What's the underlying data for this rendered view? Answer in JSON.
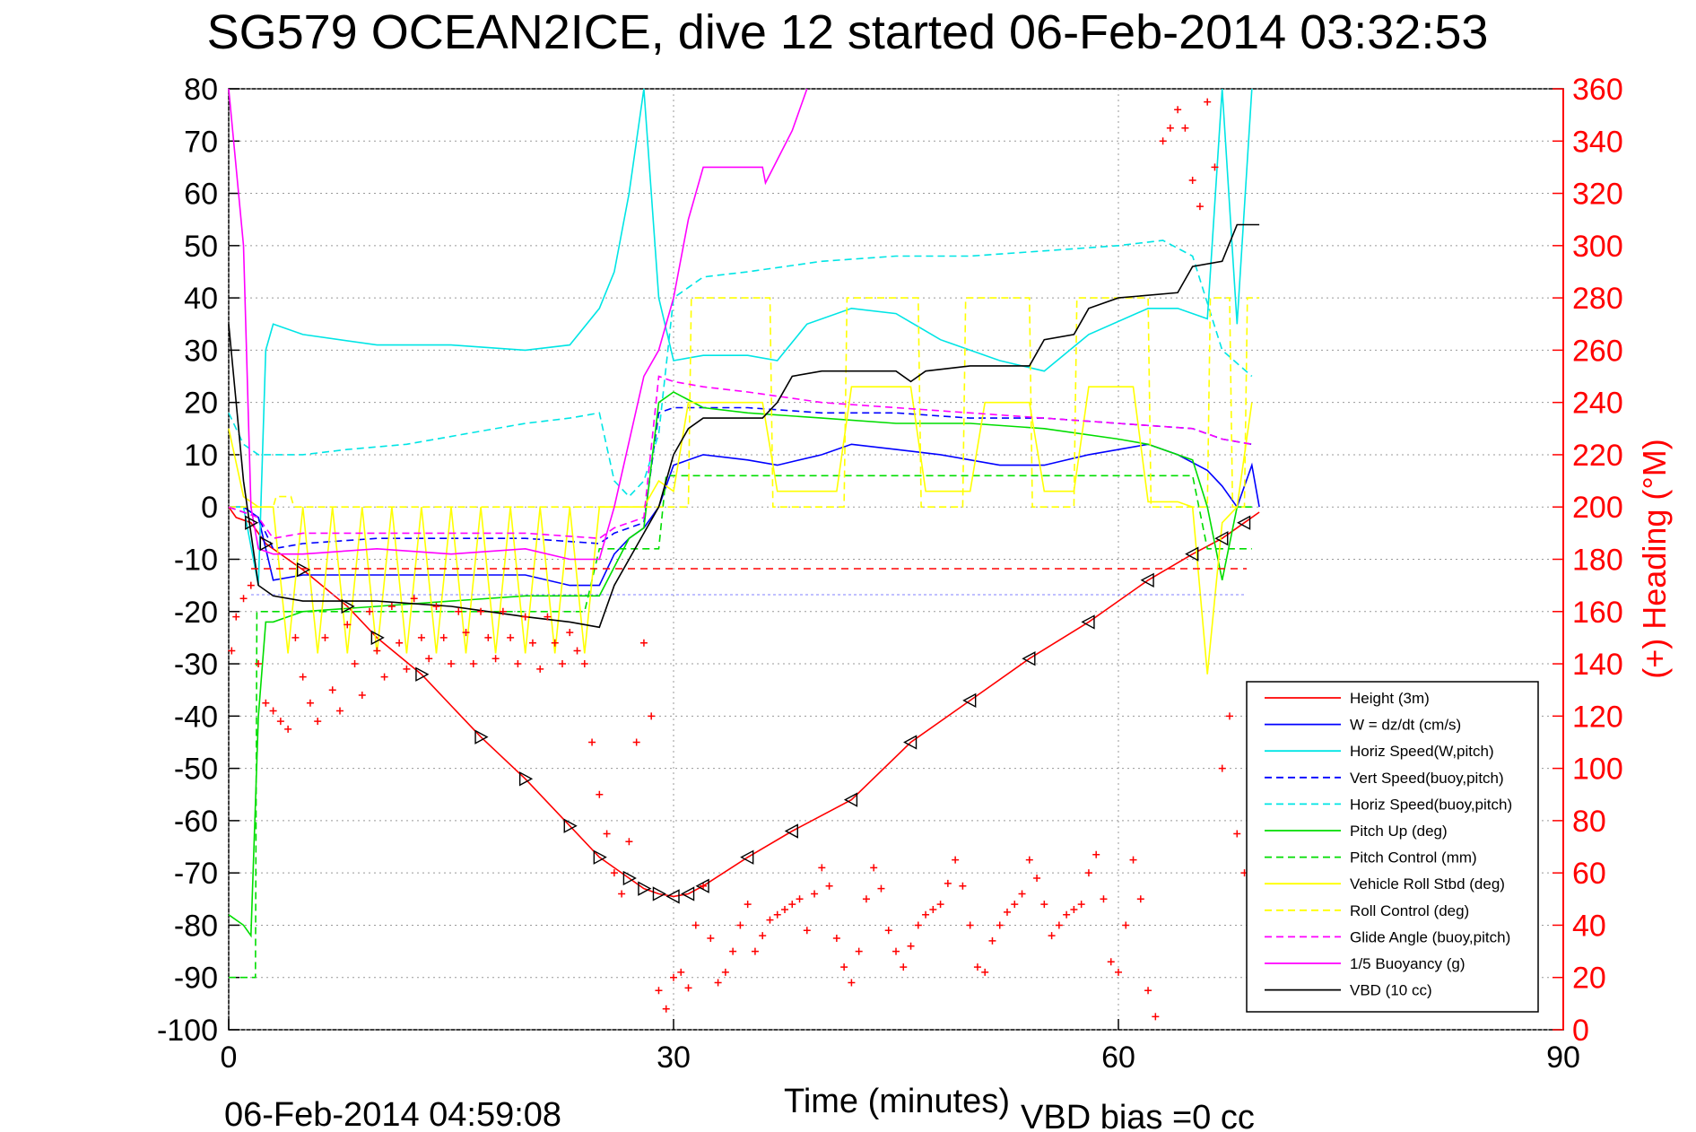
{
  "title": "SG579 OCEAN2ICE, dive 12 started 06-Feb-2014 03:32:53",
  "footer_left": "06-Feb-2014 04:59:08",
  "footer_right": "VBD bias =0 cc",
  "chart_data": {
    "type": "line",
    "xlabel": "Time (minutes)",
    "ylabel": "",
    "ylabel_right": "(+) Heading (°M)",
    "xlim": [
      0,
      90
    ],
    "ylim": [
      -100,
      80
    ],
    "ylim_right": [
      0,
      360
    ],
    "xticks": [
      0,
      30,
      60,
      90
    ],
    "yticks": [
      80,
      70,
      60,
      50,
      40,
      30,
      20,
      10,
      0,
      -10,
      -20,
      -30,
      -40,
      -50,
      -60,
      -70,
      -80,
      -90,
      -100
    ],
    "yticks_right": [
      360,
      340,
      320,
      300,
      280,
      260,
      240,
      220,
      200,
      180,
      160,
      140,
      120,
      100,
      80,
      60,
      40,
      20,
      0
    ],
    "grid": true,
    "legend_position": "bottom-right",
    "legend": [
      {
        "label": "Height (3m)",
        "color": "#ff0000",
        "dash": "solid"
      },
      {
        "label": "W  = dz/dt (cm/s)",
        "color": "#0000ff",
        "dash": "solid"
      },
      {
        "label": "Horiz Speed(W,pitch)",
        "color": "#00e5e5",
        "dash": "solid"
      },
      {
        "label": "Vert Speed(buoy,pitch)",
        "color": "#0000ff",
        "dash": "dashed"
      },
      {
        "label": "Horiz Speed(buoy,pitch)",
        "color": "#00e5e5",
        "dash": "dashed"
      },
      {
        "label": "Pitch Up (deg)",
        "color": "#00dd00",
        "dash": "solid"
      },
      {
        "label": "Pitch Control (mm)",
        "color": "#00dd00",
        "dash": "dashed"
      },
      {
        "label": "Vehicle Roll Stbd (deg)",
        "color": "#ffff00",
        "dash": "solid"
      },
      {
        "label": "Roll Control (deg)",
        "color": "#ffff00",
        "dash": "dashed"
      },
      {
        "label": "Glide Angle (buoy,pitch)",
        "color": "#ff00ff",
        "dash": "dashed"
      },
      {
        "label": "1/5 Buoyancy (g)",
        "color": "#ff00ff",
        "dash": "solid"
      },
      {
        "label": "VBD (10 cc)",
        "color": "#000000",
        "dash": "solid"
      }
    ],
    "series": [
      {
        "name": "Height (3m)",
        "color": "#ff0000",
        "axis": "left",
        "style": "solid",
        "x": [
          0.0,
          0.5,
          1.5,
          2.5,
          5,
          8,
          10,
          13,
          17,
          20,
          23,
          25,
          27,
          28,
          29,
          30,
          31,
          32,
          35,
          38,
          42,
          46,
          50,
          54,
          58,
          62,
          65,
          67,
          68.5,
          69.5
        ],
        "y": [
          0,
          -2,
          -3,
          -7,
          -12,
          -19,
          -25,
          -32,
          -44,
          -52,
          -61,
          -67,
          -71,
          -73,
          -74,
          -74.5,
          -74,
          -72.5,
          -67,
          -62,
          -56,
          -45,
          -37,
          -29,
          -22,
          -14,
          -9,
          -6,
          -3,
          -1
        ]
      },
      {
        "name": "W  = dz/dt (cm/s)",
        "color": "#0000ff",
        "axis": "left",
        "style": "solid",
        "x": [
          0,
          1,
          2,
          3,
          5,
          8,
          12,
          16,
          20,
          23,
          25,
          26,
          27,
          28,
          29,
          30,
          32,
          35,
          37,
          40,
          42,
          45,
          48,
          52,
          55,
          58,
          62,
          64,
          66,
          67,
          68,
          69,
          69.5
        ],
        "y": [
          0,
          0,
          -2,
          -14,
          -13,
          -13,
          -13,
          -13,
          -13,
          -15,
          -15,
          -9,
          -6,
          -4,
          0,
          8,
          10,
          9,
          8,
          10,
          12,
          11,
          10,
          8,
          8,
          10,
          12,
          10,
          7,
          4,
          0,
          8,
          0
        ]
      },
      {
        "name": "Horiz Speed(W,pitch)",
        "color": "#00e5e5",
        "axis": "left",
        "style": "solid",
        "x": [
          0,
          1,
          2,
          2.5,
          3,
          5,
          10,
          15,
          20,
          23,
          25,
          26,
          27,
          28,
          29,
          30,
          32,
          35,
          37,
          39,
          42,
          45,
          48,
          52,
          55,
          58,
          62,
          64,
          66,
          67,
          68,
          69
        ],
        "y": [
          0,
          0,
          -15,
          30,
          35,
          33,
          31,
          31,
          30,
          31,
          38,
          45,
          60,
          80,
          40,
          28,
          29,
          29,
          28,
          35,
          38,
          37,
          32,
          28,
          26,
          33,
          38,
          38,
          36,
          80,
          35,
          80
        ]
      },
      {
        "name": "Vert Speed(buoy,pitch)",
        "color": "#0000ff",
        "axis": "left",
        "style": "dashed",
        "x": [
          0,
          2,
          3,
          5,
          10,
          15,
          20,
          25,
          26,
          28,
          29,
          30,
          32,
          35,
          40,
          45,
          50,
          55,
          60,
          65,
          67,
          69
        ],
        "y": [
          0,
          -2,
          -8,
          -7,
          -6,
          -6,
          -6,
          -7,
          -5,
          -3,
          18,
          19,
          19,
          19,
          18,
          18,
          17,
          17,
          16,
          15,
          13,
          12
        ]
      },
      {
        "name": "Horiz Speed(buoy,pitch)",
        "color": "#00e5e5",
        "axis": "left",
        "style": "dashed",
        "x": [
          0,
          1,
          2,
          3,
          5,
          8,
          12,
          16,
          20,
          23,
          25,
          26,
          27,
          28,
          29,
          30,
          32,
          35,
          40,
          45,
          50,
          55,
          60,
          63,
          65,
          67,
          69
        ],
        "y": [
          18,
          12,
          10,
          10,
          10,
          11,
          12,
          14,
          16,
          17,
          18,
          5,
          2,
          5,
          14,
          40,
          44,
          45,
          47,
          48,
          48,
          49,
          50,
          51,
          48,
          30,
          25
        ]
      },
      {
        "name": "Pitch Up (deg)",
        "color": "#00dd00",
        "axis": "left",
        "style": "solid",
        "x": [
          0,
          1,
          1.5,
          2,
          2.5,
          3,
          5,
          10,
          15,
          20,
          25,
          27,
          28,
          29,
          30,
          32,
          35,
          40,
          45,
          50,
          55,
          60,
          62,
          65,
          66,
          67,
          68,
          69
        ],
        "y": [
          -78,
          -80,
          -82,
          -40,
          -22,
          -22,
          -20,
          -19,
          -18,
          -17,
          -17,
          -6,
          -4,
          20,
          22,
          19,
          18,
          17,
          16,
          16,
          15,
          13,
          12,
          9,
          0,
          -14,
          0,
          0
        ]
      },
      {
        "name": "Pitch Control (mm)",
        "color": "#00dd00",
        "axis": "left",
        "style": "dashed",
        "x": [
          0,
          1.8,
          1.9,
          2.5,
          5,
          10,
          15,
          20,
          24,
          25,
          29,
          29.5,
          35,
          40,
          50,
          60,
          65,
          66,
          67,
          69
        ],
        "y": [
          -90,
          -90,
          -20,
          -20,
          -20,
          -20,
          -20,
          -20,
          -20,
          -8,
          -8,
          6,
          6,
          6,
          6,
          6,
          6,
          -8,
          -8,
          -8
        ]
      },
      {
        "name": "Vehicle Roll Stbd (deg)",
        "color": "#ffff00",
        "axis": "left",
        "style": "solid",
        "x": [
          0,
          1,
          2,
          3,
          4,
          5,
          6,
          7,
          8,
          9,
          10,
          11,
          12,
          13,
          14,
          15,
          16,
          17,
          18,
          19,
          20,
          21,
          22,
          23,
          24,
          25,
          28,
          29,
          30,
          31,
          32,
          36,
          37,
          41,
          42,
          46,
          47,
          50,
          51,
          54,
          55,
          57,
          58,
          61,
          62,
          64,
          65,
          66,
          67,
          68,
          69
        ],
        "y": [
          15,
          2,
          0,
          0,
          -28,
          0,
          -28,
          0,
          -28,
          0,
          -28,
          0,
          -28,
          0,
          -28,
          0,
          -28,
          0,
          -28,
          0,
          -28,
          0,
          -28,
          0,
          -28,
          0,
          0,
          5,
          3,
          20,
          20,
          20,
          3,
          3,
          23,
          23,
          3,
          3,
          20,
          20,
          3,
          3,
          23,
          23,
          1,
          1,
          0,
          -32,
          -3,
          0,
          20
        ]
      },
      {
        "name": "Roll Control (deg)",
        "color": "#ffff00",
        "axis": "left",
        "style": "dashed",
        "x": [
          0,
          1,
          3,
          3.2,
          4.2,
          4.4,
          30,
          31,
          31.2,
          36.5,
          36.7,
          41.5,
          41.7,
          46.5,
          46.7,
          49.5,
          49.7,
          54,
          54.2,
          57,
          57.2,
          62,
          62.2,
          66,
          66.2,
          67.5,
          67.7,
          68.5,
          68.7,
          69.5
        ],
        "y": [
          0,
          0,
          0,
          2,
          2,
          0,
          0,
          0,
          40,
          40,
          0,
          0,
          40,
          40,
          0,
          0,
          40,
          40,
          0,
          0,
          40,
          40,
          0,
          0,
          40,
          40,
          0,
          0,
          40,
          40
        ]
      },
      {
        "name": "Glide Angle (buoy,pitch)",
        "color": "#ff00ff",
        "axis": "left",
        "style": "dashed",
        "x": [
          0,
          2,
          3,
          5,
          10,
          15,
          20,
          25,
          26,
          28,
          29,
          30,
          32,
          35,
          40,
          45,
          50,
          55,
          60,
          65,
          67,
          69
        ],
        "y": [
          0,
          -2,
          -6,
          -5,
          -5,
          -5,
          -5,
          -6,
          -4,
          -2,
          25,
          24,
          23,
          22,
          20,
          19,
          18,
          17,
          16,
          15,
          13,
          12
        ]
      },
      {
        "name": "1/5 Buoyancy (g)",
        "color": "#ff00ff",
        "axis": "left",
        "style": "solid",
        "x": [
          0,
          1,
          1.5,
          2,
          3,
          5,
          10,
          15,
          20,
          23,
          25,
          26,
          28,
          29,
          30,
          31,
          32,
          35,
          36,
          36.2,
          38,
          39
        ],
        "y": [
          80,
          50,
          0,
          -8,
          -9,
          -9,
          -8,
          -9,
          -8,
          -10,
          -10,
          0,
          25,
          30,
          40,
          55,
          65,
          65,
          65,
          62,
          72,
          80
        ]
      },
      {
        "name": "VBD (10 cc)",
        "color": "#000000",
        "axis": "left",
        "style": "solid",
        "x": [
          0,
          0.5,
          1,
          1.5,
          2,
          3,
          5,
          10,
          15,
          20,
          23,
          25,
          26,
          28,
          29,
          30,
          31,
          32,
          35,
          36,
          37,
          38,
          40,
          45,
          46,
          47,
          50,
          53,
          54,
          55,
          57,
          58,
          60,
          64,
          65,
          67,
          68,
          69.5
        ],
        "y": [
          35,
          20,
          5,
          -5,
          -15,
          -17,
          -18,
          -18,
          -19,
          -21,
          -22,
          -23,
          -15,
          -5,
          0,
          10,
          15,
          17,
          17,
          17,
          20,
          25,
          26,
          26,
          24,
          26,
          27,
          27,
          27,
          32,
          33,
          38,
          40,
          41,
          46,
          47,
          54,
          54
        ]
      }
    ],
    "heading_points": {
      "name": "Heading (°M)",
      "axis": "right",
      "marker": "+",
      "color": "#ff0000",
      "x": [
        0.2,
        0.5,
        1,
        1.5,
        2,
        2.5,
        3,
        3.5,
        4,
        4.5,
        5,
        5.5,
        6,
        6.5,
        7,
        7.5,
        8,
        8.5,
        9,
        9.5,
        10,
        10.5,
        11,
        11.5,
        12,
        12.5,
        13,
        13.5,
        14,
        14.5,
        15,
        15.5,
        16,
        16.5,
        17,
        17.5,
        18,
        18.5,
        19,
        19.5,
        20,
        20.5,
        21,
        21.5,
        22,
        22.5,
        23,
        23.5,
        24,
        24.5,
        25,
        25.5,
        26,
        26.5,
        27,
        27.5,
        28,
        28.5,
        29,
        29.5,
        30,
        30.5,
        31,
        31.5,
        32,
        32.5,
        33,
        33.5,
        34,
        34.5,
        35,
        35.5,
        36,
        36.5,
        37,
        37.5,
        38,
        38.5,
        39,
        39.5,
        40,
        40.5,
        41,
        41.5,
        42,
        42.5,
        43,
        43.5,
        44,
        44.5,
        45,
        45.5,
        46,
        46.5,
        47,
        47.5,
        48,
        48.5,
        49,
        49.5,
        50,
        50.5,
        51,
        51.5,
        52,
        52.5,
        53,
        53.5,
        54,
        54.5,
        55,
        55.5,
        56,
        56.5,
        57,
        57.5,
        58,
        58.5,
        59,
        59.5,
        60,
        60.5,
        61,
        61.5,
        62,
        62.5,
        63,
        63.5,
        64,
        64.5,
        65,
        65.5,
        66,
        66.5,
        67,
        67.5,
        68,
        68.5,
        69,
        69.5
      ],
      "y": [
        145,
        158,
        165,
        170,
        140,
        125,
        122,
        118,
        115,
        150,
        135,
        125,
        118,
        150,
        130,
        122,
        155,
        140,
        128,
        160,
        145,
        135,
        162,
        148,
        138,
        165,
        150,
        142,
        162,
        150,
        140,
        160,
        152,
        140,
        160,
        150,
        142,
        160,
        150,
        140,
        158,
        148,
        138,
        158,
        148,
        140,
        152,
        145,
        140,
        110,
        90,
        75,
        60,
        52,
        72,
        110,
        148,
        120,
        15,
        8,
        20,
        22,
        16,
        40,
        55,
        35,
        18,
        22,
        30,
        40,
        48,
        30,
        36,
        42,
        44,
        46,
        48,
        50,
        38,
        52,
        62,
        55,
        35,
        24,
        18,
        30,
        50,
        62,
        54,
        38,
        30,
        24,
        32,
        40,
        44,
        46,
        48,
        56,
        65,
        55,
        40,
        24,
        22,
        34,
        40,
        45,
        48,
        52,
        65,
        58,
        48,
        36,
        40,
        44,
        46,
        48,
        60,
        67,
        50,
        26,
        22,
        40,
        65,
        50,
        15,
        5,
        340,
        345,
        352,
        345,
        325,
        315,
        355,
        330,
        100,
        120,
        75,
        60,
        80,
        70
      ]
    }
  }
}
